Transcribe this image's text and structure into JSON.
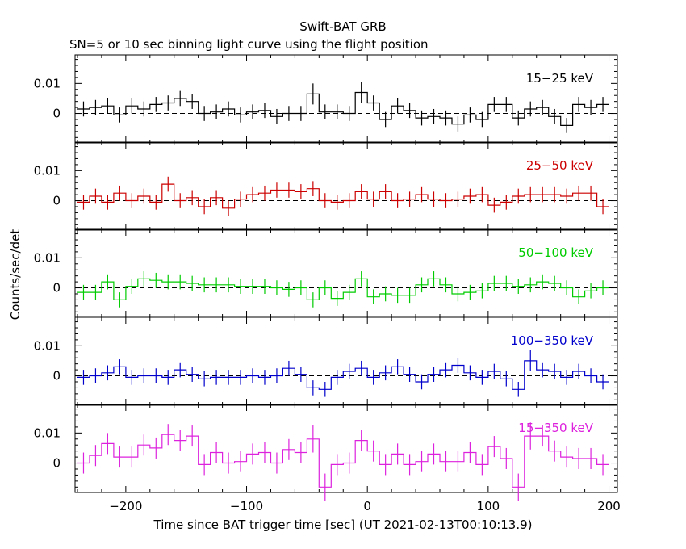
{
  "chart_data": {
    "type": "line",
    "title": "Swift-BAT GRB",
    "subtitle": "SN=5 or 10 sec binning light curve using the flight position",
    "xlabel": "Time since BAT trigger time [sec] (UT 2021-02-13T00:10:13.9)",
    "ylabel": "Counts/sec/det",
    "xlim": [
      -242,
      207
    ],
    "xticks": [
      -200,
      -100,
      0,
      100,
      200
    ],
    "ylim": [
      -0.0098,
      0.0195
    ],
    "yticks": [
      0,
      0.01
    ],
    "ytick_labels": [
      "0",
      "0.01"
    ],
    "baseline": 0,
    "grid": false,
    "x": [
      -235,
      -225,
      -215,
      -205,
      -195,
      -185,
      -175,
      -165,
      -155,
      -145,
      -135,
      -125,
      -115,
      -105,
      -95,
      -85,
      -75,
      -65,
      -55,
      -45,
      -35,
      -25,
      -15,
      -5,
      5,
      15,
      25,
      35,
      45,
      55,
      65,
      75,
      85,
      95,
      105,
      115,
      125,
      135,
      145,
      155,
      165,
      175,
      185,
      195
    ],
    "panels": [
      {
        "label": "15−25 keV",
        "color": "#000000",
        "values": [
          0.0015,
          0.002,
          0.0025,
          -0.0005,
          0.0025,
          0.0015,
          0.003,
          0.0035,
          0.005,
          0.004,
          0.0,
          0.0005,
          0.0015,
          -0.0005,
          0.0005,
          0.001,
          -0.001,
          0.0,
          0.0,
          0.0065,
          0.0005,
          0.0005,
          0.0,
          0.007,
          0.0035,
          -0.002,
          0.0025,
          0.001,
          -0.0015,
          -0.001,
          -0.0015,
          -0.0035,
          -0.0005,
          -0.002,
          0.003,
          0.003,
          -0.0015,
          0.0015,
          0.002,
          -0.001,
          -0.004,
          0.003,
          0.002,
          0.003
        ],
        "errors": [
          0.0025,
          0.0025,
          0.0025,
          0.0025,
          0.0025,
          0.0025,
          0.0025,
          0.0025,
          0.0025,
          0.0025,
          0.0025,
          0.0025,
          0.0025,
          0.0025,
          0.0025,
          0.0025,
          0.0025,
          0.0025,
          0.0025,
          0.0035,
          0.0025,
          0.0025,
          0.0025,
          0.0035,
          0.0025,
          0.0025,
          0.0025,
          0.0025,
          0.0025,
          0.0025,
          0.0025,
          0.0025,
          0.0025,
          0.0025,
          0.0025,
          0.0025,
          0.0025,
          0.0025,
          0.0025,
          0.0025,
          0.0025,
          0.0025,
          0.0025,
          0.0025
        ]
      },
      {
        "label": "25−50 keV",
        "color": "#cc0000",
        "values": [
          -0.0005,
          0.0015,
          -0.0005,
          0.0025,
          0.0,
          0.0015,
          -0.0005,
          0.0055,
          0.0,
          0.001,
          -0.002,
          0.001,
          -0.0025,
          0.0005,
          0.002,
          0.0025,
          0.0035,
          0.0035,
          0.003,
          0.004,
          0.0,
          -0.0005,
          0.0,
          0.003,
          0.0005,
          0.003,
          0.0,
          0.0005,
          0.002,
          0.0005,
          0.0,
          0.0005,
          0.0015,
          0.002,
          -0.0015,
          -0.0005,
          0.0015,
          0.002,
          0.002,
          0.002,
          0.0015,
          0.0025,
          0.0025,
          -0.002
        ],
        "errors": [
          0.0025,
          0.0025,
          0.0025,
          0.0025,
          0.0025,
          0.0025,
          0.0025,
          0.0025,
          0.0025,
          0.0025,
          0.0025,
          0.0025,
          0.0025,
          0.0025,
          0.0025,
          0.0025,
          0.0025,
          0.0025,
          0.0025,
          0.0025,
          0.0025,
          0.0025,
          0.0025,
          0.0025,
          0.0025,
          0.0025,
          0.0025,
          0.0025,
          0.0025,
          0.0025,
          0.0025,
          0.0025,
          0.0025,
          0.0025,
          0.0025,
          0.0025,
          0.0025,
          0.0025,
          0.0025,
          0.0025,
          0.0025,
          0.0025,
          0.0025,
          0.0025
        ]
      },
      {
        "label": "50−100 keV",
        "color": "#00cc00",
        "values": [
          -0.0015,
          -0.0015,
          0.002,
          -0.004,
          0.0005,
          0.003,
          0.0025,
          0.002,
          0.002,
          0.0015,
          0.001,
          0.001,
          0.001,
          0.0005,
          0.0005,
          0.0005,
          0.0,
          -0.0005,
          0.0,
          -0.004,
          0.0,
          -0.0035,
          -0.0015,
          0.003,
          -0.003,
          -0.002,
          -0.0025,
          -0.0025,
          0.001,
          0.003,
          0.001,
          -0.002,
          -0.0015,
          -0.001,
          0.0015,
          0.0015,
          0.0005,
          0.001,
          0.002,
          0.0015,
          0.0,
          -0.003,
          -0.001,
          0.0
        ],
        "errors": [
          0.0025,
          0.0025,
          0.0025,
          0.0025,
          0.0025,
          0.0025,
          0.0025,
          0.0025,
          0.0025,
          0.0025,
          0.0025,
          0.0025,
          0.0025,
          0.0025,
          0.0025,
          0.0025,
          0.0025,
          0.0025,
          0.0025,
          0.0025,
          0.0025,
          0.0025,
          0.0025,
          0.0025,
          0.0025,
          0.0025,
          0.0025,
          0.0025,
          0.0025,
          0.0025,
          0.0025,
          0.0025,
          0.0025,
          0.0025,
          0.0025,
          0.0025,
          0.0025,
          0.0025,
          0.0025,
          0.0025,
          0.0025,
          0.0025,
          0.0025,
          0.0025
        ]
      },
      {
        "label": "100−350 keV",
        "color": "#0000cc",
        "values": [
          -0.0005,
          0.0,
          0.001,
          0.003,
          -0.0005,
          0.0,
          0.0,
          -0.0005,
          0.002,
          0.0005,
          -0.001,
          -0.0005,
          -0.0005,
          -0.0005,
          0.0,
          -0.0005,
          0.0,
          0.0025,
          0.0005,
          -0.004,
          -0.0045,
          -0.0005,
          0.0015,
          0.0025,
          -0.0005,
          0.001,
          0.003,
          0.0005,
          -0.002,
          0.0005,
          0.002,
          0.0035,
          0.001,
          -0.0005,
          0.0015,
          -0.001,
          -0.0045,
          0.005,
          0.002,
          0.0015,
          -0.0005,
          0.0015,
          0.0,
          -0.002
        ],
        "errors": [
          0.0025,
          0.0025,
          0.0025,
          0.0025,
          0.0025,
          0.0025,
          0.0025,
          0.0025,
          0.0025,
          0.0025,
          0.0025,
          0.0025,
          0.0025,
          0.0025,
          0.0025,
          0.0025,
          0.0025,
          0.0025,
          0.0025,
          0.0025,
          0.0025,
          0.0025,
          0.0025,
          0.0025,
          0.0025,
          0.0025,
          0.0025,
          0.0025,
          0.0025,
          0.0025,
          0.0025,
          0.0025,
          0.0025,
          0.0025,
          0.0025,
          0.0025,
          0.0025,
          0.0035,
          0.0025,
          0.0025,
          0.0025,
          0.0025,
          0.0025,
          0.0025
        ]
      },
      {
        "label": "15−350 keV",
        "color": "#dd22dd",
        "values": [
          0.0,
          0.0025,
          0.0065,
          0.002,
          0.002,
          0.006,
          0.005,
          0.0095,
          0.0075,
          0.009,
          -0.0005,
          0.0035,
          0.0,
          0.0005,
          0.003,
          0.0035,
          0.0,
          0.0045,
          0.0035,
          0.008,
          -0.008,
          -0.0005,
          0.0,
          0.0075,
          0.004,
          -0.0005,
          0.003,
          -0.0005,
          0.0005,
          0.003,
          0.0005,
          0.0005,
          0.0035,
          -0.0005,
          0.0055,
          0.0015,
          -0.008,
          0.009,
          0.009,
          0.004,
          0.002,
          0.0015,
          0.0015,
          -0.0005
        ],
        "errors": [
          0.0035,
          0.0035,
          0.0035,
          0.0035,
          0.0035,
          0.0035,
          0.0035,
          0.0035,
          0.0035,
          0.0035,
          0.0035,
          0.0035,
          0.0035,
          0.0035,
          0.0035,
          0.0035,
          0.0035,
          0.0035,
          0.0035,
          0.0045,
          0.0045,
          0.0035,
          0.0035,
          0.0035,
          0.0035,
          0.0035,
          0.0035,
          0.0035,
          0.0035,
          0.0035,
          0.0035,
          0.0035,
          0.0035,
          0.0035,
          0.0035,
          0.0035,
          0.0045,
          0.0045,
          0.0035,
          0.0035,
          0.0035,
          0.0035,
          0.0035,
          0.0035
        ]
      }
    ]
  }
}
